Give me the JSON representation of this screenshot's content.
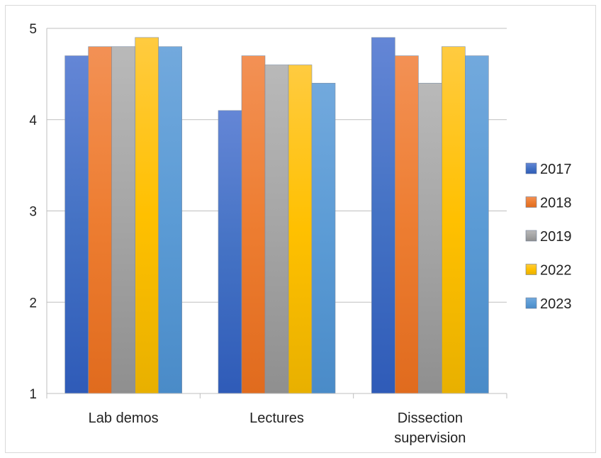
{
  "chart_data": {
    "type": "bar",
    "title": "",
    "xlabel": "",
    "ylabel": "",
    "categories": [
      "Lab demos",
      "Lectures",
      "Dissection supervision"
    ],
    "category_lines": [
      [
        "Lab demos"
      ],
      [
        "Lectures"
      ],
      [
        "Dissection",
        "supervision"
      ]
    ],
    "ylim": [
      1,
      5
    ],
    "yticks": [
      "1",
      "2",
      "3",
      "4",
      "5"
    ],
    "grid": true,
    "legend_position": "right",
    "series": [
      {
        "name": "2017",
        "values": [
          4.7,
          4.1,
          4.9
        ],
        "color": "#4472c4",
        "color_light": "#6486d6",
        "color_dark": "#2f5bb8"
      },
      {
        "name": "2018",
        "values": [
          4.8,
          4.7,
          4.7
        ],
        "color": "#ed7d31",
        "color_light": "#f39155",
        "color_dark": "#e06b1e"
      },
      {
        "name": "2019",
        "values": [
          4.8,
          4.6,
          4.4
        ],
        "color": "#a5a5a5",
        "color_light": "#b9b9b9",
        "color_dark": "#8f8f8f"
      },
      {
        "name": "2022",
        "values": [
          4.9,
          4.6,
          4.8
        ],
        "color": "#ffc000",
        "color_light": "#ffcb40",
        "color_dark": "#e8b000"
      },
      {
        "name": "2023",
        "values": [
          4.8,
          4.4,
          4.7
        ],
        "color": "#5b9bd5",
        "color_light": "#72a9dd",
        "color_dark": "#4a8bc8"
      }
    ]
  }
}
